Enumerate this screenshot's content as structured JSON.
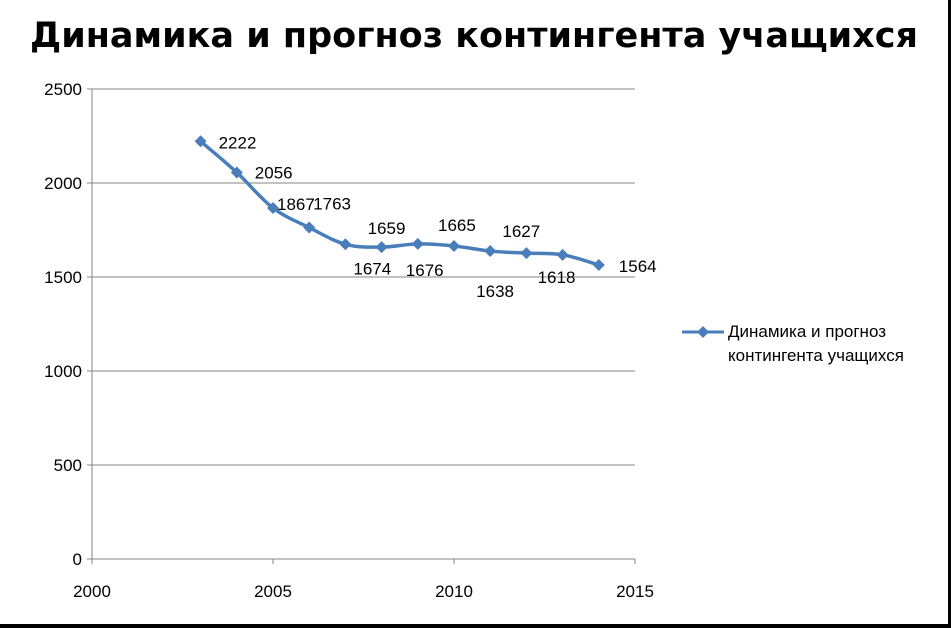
{
  "chart_data": {
    "type": "line",
    "title": "Динамика и прогноз контингента  учащихся",
    "x": [
      2003,
      2004,
      2005,
      2006,
      2007,
      2008,
      2009,
      2010,
      2011,
      2012,
      2013,
      2014
    ],
    "series": [
      {
        "name": "Динамика и прогноз контингента  учащихся",
        "values": [
          2222,
          2056,
          1867,
          1763,
          1674,
          1659,
          1676,
          1665,
          1638,
          1627,
          1618,
          1564
        ],
        "data_labels": [
          "2222",
          "2056",
          "1867",
          "1763",
          "1674",
          "1659",
          "1676",
          "1665",
          "1638",
          "1627",
          "1618",
          "1564"
        ]
      }
    ],
    "xlim": [
      2000,
      2015
    ],
    "ylim": [
      0,
      2500
    ],
    "x_ticks": [
      "2000",
      "2005",
      "2010",
      "2015"
    ],
    "y_ticks": [
      "0",
      "500",
      "1000",
      "1500",
      "2000",
      "2500"
    ],
    "grid": "horizontal",
    "legend_position": "right",
    "series_color": "#4a7ebb",
    "background": "#ffffff"
  }
}
